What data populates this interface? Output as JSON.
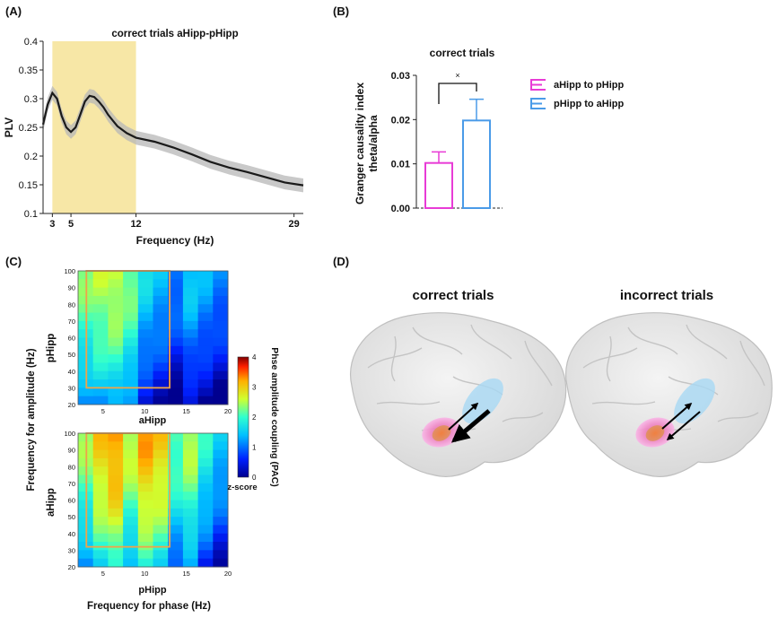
{
  "panel_labels": {
    "a": "(A)",
    "b": "(B)",
    "c": "(C)",
    "d": "(D)"
  },
  "colors": {
    "highlight": "#f7e7a6",
    "plv_line": "#1a1a1a",
    "plv_band": "#a9a9a9",
    "a_to_p": "#e83bd6",
    "p_to_a": "#4a9be8",
    "box": "#f0a448"
  },
  "panel_a": {
    "chart_data": {
      "type": "line",
      "title": "correct trials aHipp-pHipp",
      "xlabel": "Frequency (Hz)",
      "ylabel": "PLV",
      "xlim": [
        2,
        30
      ],
      "ylim": [
        0.1,
        0.4
      ],
      "xticks": [
        "3",
        "5",
        "12",
        "29"
      ],
      "yticks": [
        "0.1",
        "0.15",
        "0.2",
        "0.25",
        "0.3",
        "0.35",
        "0.4"
      ],
      "highlight_range": [
        3,
        12
      ],
      "x": [
        2,
        2.5,
        3,
        3.5,
        4,
        4.5,
        5,
        5.5,
        6,
        6.5,
        7,
        7.5,
        8,
        8.5,
        9,
        10,
        11,
        12,
        14,
        16,
        18,
        20,
        22,
        24,
        26,
        28,
        30
      ],
      "y": [
        0.255,
        0.29,
        0.31,
        0.3,
        0.27,
        0.25,
        0.242,
        0.25,
        0.272,
        0.295,
        0.305,
        0.303,
        0.295,
        0.285,
        0.272,
        0.252,
        0.24,
        0.232,
        0.225,
        0.215,
        0.203,
        0.19,
        0.18,
        0.172,
        0.163,
        0.154,
        0.149
      ],
      "sem": 0.012
    }
  },
  "panel_b": {
    "chart_data": {
      "type": "bar",
      "title": "correct trials",
      "ylabel_line1": "Granger causality index",
      "ylabel_line2": "theta/alpha",
      "ylim": [
        0,
        0.03
      ],
      "yticks": [
        "0.00",
        "0.01",
        "0.02",
        "0.03"
      ],
      "series": [
        {
          "name": "aHipp to pHipp",
          "value": 0.0102,
          "error": 0.0025
        },
        {
          "name": "pHipp to aHipp",
          "value": 0.0198,
          "error": 0.0048
        }
      ],
      "significance": "×"
    }
  },
  "panel_c": {
    "ylabel": "Frequency for amplitude (Hz)",
    "xlabel": "Frequency for phase (Hz)",
    "colorbar_label": "Phse amplitude coupling (PAC)",
    "colorbar_unit": "z-score",
    "colorbar_ticks": [
      "0",
      "1",
      "2",
      "3",
      "4"
    ],
    "colorbar_range": [
      0,
      4
    ],
    "xticks": [
      "5",
      "10",
      "15",
      "20"
    ],
    "yticks": [
      "20",
      "30",
      "40",
      "50",
      "60",
      "70",
      "80",
      "90",
      "100"
    ],
    "top_map": {
      "side_label": "pHipp",
      "bottom_label": "aHipp",
      "chart_data": {
        "type": "heatmap",
        "x_range": [
          2,
          20
        ],
        "y_range": [
          20,
          100
        ],
        "columns_z": [
          2.3,
          2.5,
          2.6,
          2.3,
          1.6,
          1.4,
          1.1,
          1.5,
          1.3,
          1.1
        ],
        "row_decay": 1.2,
        "box": {
          "x": [
            3,
            13
          ],
          "y": [
            30,
            100
          ]
        }
      }
    },
    "bottom_map": {
      "side_label": "aHipp",
      "bottom_label": "pHipp",
      "chart_data": {
        "type": "heatmap",
        "x_range": [
          2,
          20
        ],
        "y_range": [
          20,
          100
        ],
        "columns_z": [
          2.4,
          3.0,
          3.3,
          2.6,
          3.2,
          3.0,
          2.2,
          2.5,
          1.9,
          1.5
        ],
        "row_decay": 1.3,
        "box": {
          "x": [
            3,
            13
          ],
          "y": [
            32,
            100
          ]
        }
      }
    }
  },
  "panel_d": {
    "left_title": "correct trials",
    "right_title": "incorrect trials"
  }
}
